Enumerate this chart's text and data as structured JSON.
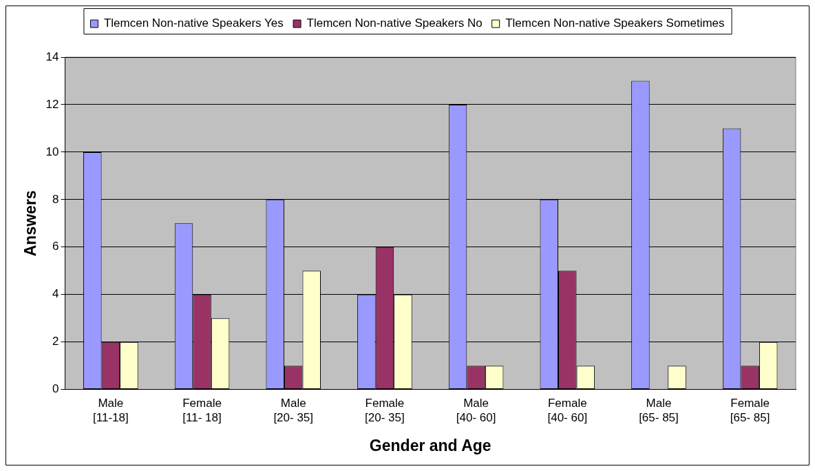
{
  "chart_data": {
    "type": "bar",
    "xlabel": "Gender and Age",
    "ylabel": "Answers",
    "categories": [
      "Male [11-18]",
      "Female [11- 18]",
      "Male [20- 35]",
      "Female [20- 35]",
      "Male [40- 60]",
      "Female [40- 60]",
      "Male [65- 85]",
      "Female [65- 85]"
    ],
    "series": [
      {
        "name": "Tlemcen Non-native Speakers Yes",
        "color": "#9999ff",
        "values": [
          10,
          7,
          8,
          4,
          12,
          8,
          13,
          11
        ]
      },
      {
        "name": "Tlemcen Non-native Speakers No",
        "color": "#993366",
        "values": [
          2,
          4,
          1,
          6,
          1,
          5,
          0,
          1
        ]
      },
      {
        "name": "Tlemcen Non-native Speakers Sometimes",
        "color": "#ffffcc",
        "values": [
          2,
          3,
          5,
          4,
          1,
          1,
          1,
          2
        ]
      }
    ],
    "ylim": [
      0,
      14
    ],
    "yticks": [
      0,
      2,
      4,
      6,
      8,
      10,
      12,
      14
    ],
    "grid": "y",
    "legend": "top"
  }
}
